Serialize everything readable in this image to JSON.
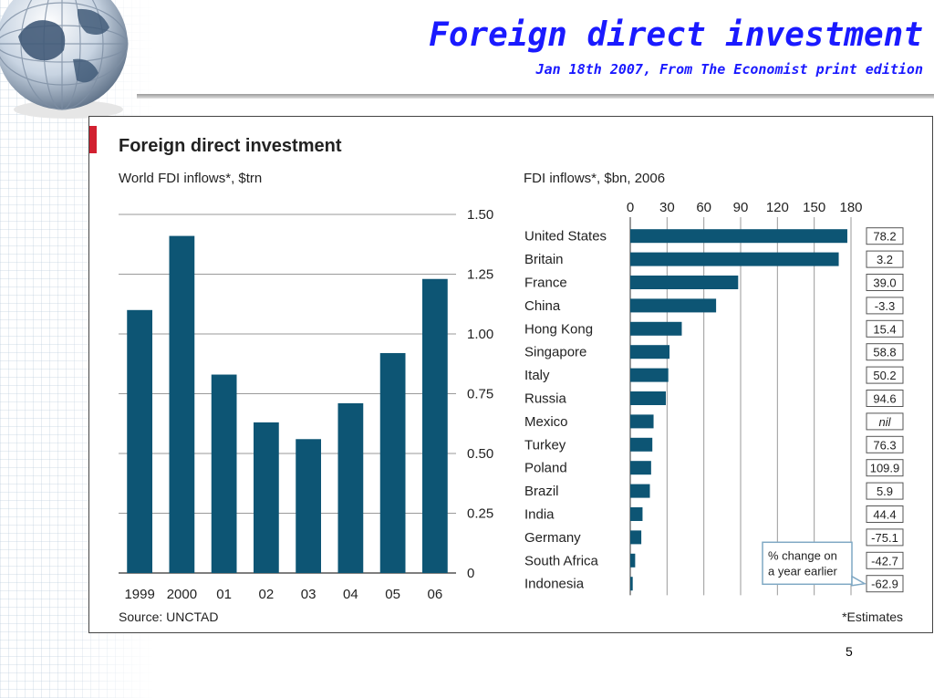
{
  "slide": {
    "title": "Foreign direct investment",
    "subtitle": "Jan 18th 2007, From The Economist print edition",
    "page_number": "5"
  },
  "figure": {
    "title": "Foreign direct investment",
    "source": "Source: UNCTAD",
    "footnote": "*Estimates"
  },
  "colors": {
    "bar": "#0d5574",
    "accent": "#d22030",
    "title": "#1a1aff"
  },
  "chart_data": [
    {
      "type": "bar",
      "title": "World FDI inflows*, $trn",
      "categories": [
        "1999",
        "2000",
        "01",
        "02",
        "03",
        "04",
        "05",
        "06"
      ],
      "values": [
        1.1,
        1.41,
        0.83,
        0.63,
        0.56,
        0.71,
        0.92,
        1.23
      ],
      "ylim": [
        0,
        1.5
      ],
      "y_ticks": [
        "0",
        "0.25",
        "0.50",
        "0.75",
        "1.00",
        "1.25",
        "1.50"
      ],
      "y_tick_values": [
        0,
        0.25,
        0.5,
        0.75,
        1.0,
        1.25,
        1.5
      ],
      "y_axis_side": "right",
      "grid": true
    },
    {
      "type": "bar",
      "orientation": "horizontal",
      "title": "FDI inflows*, $bn, 2006",
      "categories": [
        "United States",
        "Britain",
        "France",
        "China",
        "Hong Kong",
        "Singapore",
        "Italy",
        "Russia",
        "Mexico",
        "Turkey",
        "Poland",
        "Brazil",
        "India",
        "Germany",
        "South Africa",
        "Indonesia"
      ],
      "values": [
        177,
        170,
        88,
        70,
        42,
        32,
        31,
        29,
        19,
        18,
        17,
        16,
        10,
        9,
        4,
        2
      ],
      "xlim": [
        0,
        180
      ],
      "x_ticks": [
        "0",
        "30",
        "60",
        "90",
        "120",
        "150",
        "180"
      ],
      "x_tick_values": [
        0,
        30,
        60,
        90,
        120,
        150,
        180
      ],
      "x_axis_side": "top",
      "pct_change": [
        "78.2",
        "3.2",
        "39.0",
        "-3.3",
        "15.4",
        "58.8",
        "50.2",
        "94.6",
        "nil",
        "76.3",
        "109.9",
        "5.9",
        "44.4",
        "-75.1",
        "-42.7",
        "-62.9"
      ],
      "pct_change_label": [
        "% change on",
        "a year earlier"
      ],
      "grid": true
    }
  ]
}
